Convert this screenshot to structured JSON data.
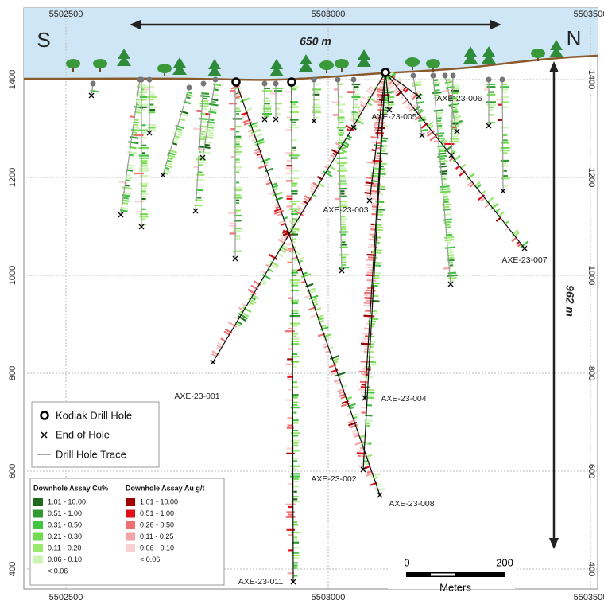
{
  "header": {
    "south": "S",
    "north": "N",
    "width_label": "650 m",
    "depth_label": "962 m"
  },
  "axes": {
    "easting": [
      5502500,
      5503000,
      5503500
    ],
    "elevation": [
      1400,
      1200,
      1000,
      800,
      600,
      400
    ]
  },
  "holes": [
    {
      "label": "AXE-23-001"
    },
    {
      "label": "AXE-23-002"
    },
    {
      "label": "AXE-23-003"
    },
    {
      "label": "AXE-23-004"
    },
    {
      "label": "AXE-23-005"
    },
    {
      "label": "AXE-23-006"
    },
    {
      "label": "AXE-23-007"
    },
    {
      "label": "AXE-23-008"
    },
    {
      "label": "AXE-23-011"
    }
  ],
  "legend": {
    "items": [
      "Kodiak Drill Hole",
      "End of Hole",
      "Drill Hole Trace"
    ]
  },
  "assay_legend": {
    "cu_title": "Downhole Assay Cu%",
    "cu_classes": [
      "1.01 - 10.00",
      "0.51 - 1.00",
      "0.31 - 0.50",
      "0.21 - 0.30",
      "0.11 - 0.20",
      "0.06 - 0.10",
      "< 0.06"
    ],
    "au_title": "Downhole Assay Au g/t",
    "au_classes": [
      "1.01 - 10.00",
      "0.51 - 1.00",
      "0.26 - 0.50",
      "0.11 - 0.25",
      "0.06 - 0.10",
      "< 0.06"
    ]
  },
  "scale_bar": {
    "start": 0,
    "end": 200,
    "unit": "Meters"
  }
}
